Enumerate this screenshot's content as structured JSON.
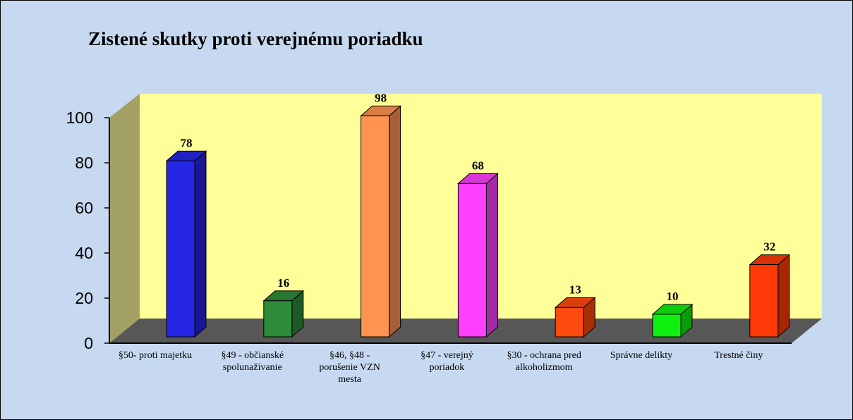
{
  "chart_data": {
    "type": "bar3d",
    "title": "Zistené skutky proti verejnému poriadku",
    "categories": [
      "§50- proti majetku",
      "§49 - občianské spolunažívanie",
      "§46, §48 - porušenie VZN mesta",
      "§47 - verejný poriadok",
      "§30 - ochrana pred alkoholizmom",
      "Správne delikty",
      "Trestné činy"
    ],
    "values": [
      78,
      16,
      98,
      68,
      13,
      10,
      32
    ],
    "colors": [
      "#2626e6",
      "#2e8b3a",
      "#ff9450",
      "#ff40ff",
      "#ff4a10",
      "#10f010",
      "#ff3a08"
    ],
    "ylim": [
      0,
      100
    ],
    "yticks": [
      0,
      20,
      40,
      60,
      80,
      100
    ]
  }
}
